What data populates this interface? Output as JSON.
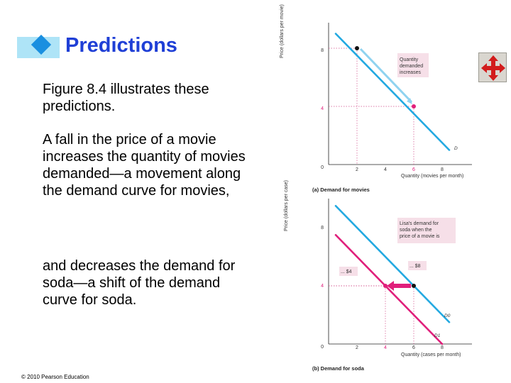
{
  "title": "Predictions",
  "paragraphs": [
    "Figure 8.4 illustrates these predictions.",
    "A fall in the price of a movie increases the quantity of movies demanded—a movement along the demand curve for movies,",
    "and decreases the demand for soda—a shift of the demand curve for soda."
  ],
  "footer": "© 2010 Pearson Education",
  "nav_icon": "four-way-arrows-icon",
  "colors": {
    "title": "#1f3fd6",
    "accent_cyan": "#23a9e1",
    "accent_magenta": "#e01f7b"
  },
  "chart_data": [
    {
      "type": "line",
      "title": "(a) Demand for movies",
      "xlabel": "Quantity (movies per month)",
      "ylabel": "Price (dollars per movie)",
      "xlim": [
        0,
        9
      ],
      "ylim": [
        0,
        9
      ],
      "x_ticks": [
        "0",
        "2",
        "4",
        "6",
        "8"
      ],
      "y_ticks": [
        "4",
        "8"
      ],
      "series": [
        {
          "name": "D",
          "color": "#23a9e1",
          "points": [
            [
              0.5,
              9
            ],
            [
              8.5,
              1
            ]
          ]
        }
      ],
      "points": [
        {
          "x": 2,
          "y": 8,
          "color": "#111111"
        },
        {
          "x": 6,
          "y": 4,
          "color": "#e01f7b"
        }
      ],
      "annotation": "Quantity demanded increases"
    },
    {
      "type": "line",
      "title": "(b) Demand for soda",
      "xlabel": "Quantity (cases per month)",
      "ylabel": "Price (dollars per case)",
      "xlim": [
        0,
        9
      ],
      "ylim": [
        0,
        9
      ],
      "x_ticks": [
        "0",
        "2",
        "4",
        "6",
        "8"
      ],
      "y_ticks": [
        "4",
        "8"
      ],
      "series": [
        {
          "name": "D0",
          "color": "#23a9e1",
          "points": [
            [
              0.5,
              9.5
            ],
            [
              8.5,
              1.5
            ]
          ]
        },
        {
          "name": "D1",
          "color": "#e01f7b",
          "points": [
            [
              0.5,
              7.5
            ],
            [
              8,
              0
            ]
          ]
        }
      ],
      "points": [
        {
          "x": 6,
          "y": 4,
          "color": "#111111"
        },
        {
          "x": 4,
          "y": 4,
          "color": "#e01f7b"
        }
      ],
      "annotation": "Lisa's demand for soda when the price of a movie is",
      "price_tags": [
        "... $8",
        "... $4"
      ]
    }
  ]
}
